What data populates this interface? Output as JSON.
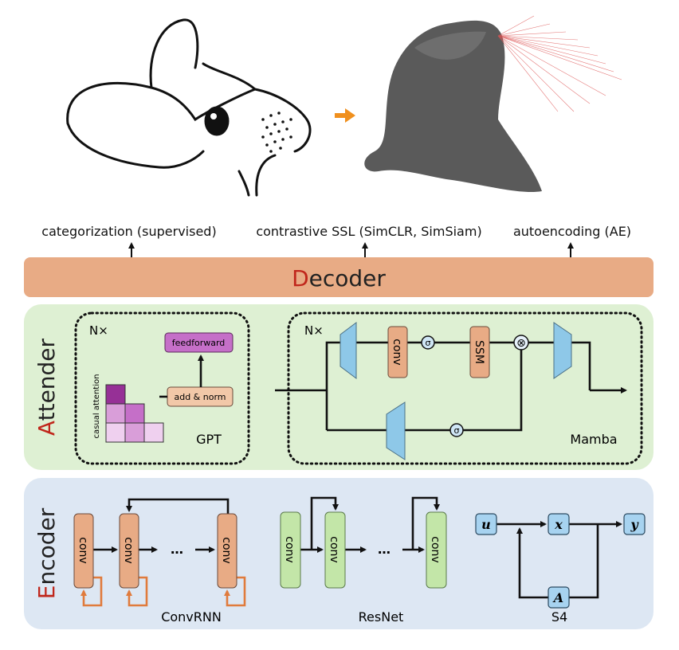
{
  "colors": {
    "accent_red": "#c0261b",
    "decoder": "#e8ab85",
    "attender_bg": "#def0d3",
    "encoder_bg": "#dde7f3",
    "blue_block": "#8ec8e8",
    "green_block": "#c3e6a8",
    "purple": "#c56fc8",
    "arrow_orange": "#f0901e"
  },
  "objectives": [
    "categorization (supervised)",
    "contrastive SSL (SimCLR, SimSiam)",
    "autoencoding (AE)"
  ],
  "decoder": {
    "initial": "D",
    "rest": "ecoder"
  },
  "attender": {
    "initial": "A",
    "rest": "ttender",
    "gpt": {
      "repeat": "N×",
      "feedforward": "feedforward",
      "add_norm": "add & norm",
      "attention": "casual attention",
      "name": "GPT"
    },
    "mamba": {
      "repeat": "N×",
      "conv": "conv",
      "ssm": "SSM",
      "sigma": "σ",
      "multiply": "⊗",
      "name": "Mamba"
    }
  },
  "encoder": {
    "initial": "E",
    "rest": "ncoder",
    "convrnn": {
      "block": "conv",
      "ellipsis": "…",
      "name": "ConvRNN"
    },
    "resnet": {
      "block": "conv",
      "ellipsis": "…",
      "name": "ResNet"
    },
    "s4": {
      "u": "u",
      "x": "x",
      "y": "y",
      "A": "A",
      "name": "S4"
    }
  }
}
